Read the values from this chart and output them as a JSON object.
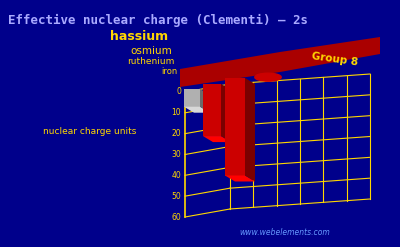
{
  "title": "Effective nuclear charge (Clementi) – 2s",
  "ylabel": "nuclear charge units",
  "xlabel": "Group 8",
  "watermark": "www.webelements.com",
  "background_color": "#00008B",
  "bar_color_iron": "#B0B0B0",
  "bar_color_others": "#CC0000",
  "floor_color": "#AA0000",
  "grid_color": "#FFD700",
  "text_color": "#FFD700",
  "title_color": "#AAAAFF",
  "elements": [
    "iron",
    "ruthenium",
    "osmium",
    "hassium"
  ],
  "values": [
    8.5,
    25.0,
    46.8,
    5.0
  ],
  "ylim": [
    0,
    60
  ],
  "yticks": [
    0,
    10,
    20,
    30,
    40,
    50,
    60
  ],
  "watermark_color": "#6699FF"
}
